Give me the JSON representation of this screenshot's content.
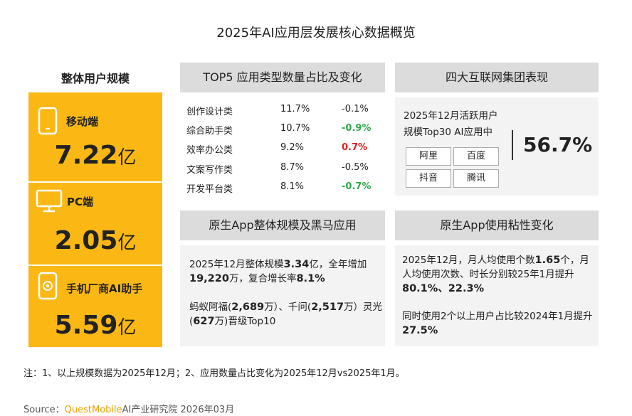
{
  "title": "2025年AI应用层发展核心数据概览",
  "user_scale": {
    "title": "整体用户规模",
    "items": [
      {
        "label": "移动端",
        "value": "7.22",
        "unit": "亿"
      },
      {
        "label": "PC端",
        "value": "2.05",
        "unit": "亿"
      },
      {
        "label": "手机厂商AI助手",
        "value": "5.59",
        "unit": "亿"
      }
    ]
  },
  "top5": {
    "title": "TOP5 应用类型数量占比及变化",
    "rows": [
      {
        "name": "创作设计类",
        "share": "11.7%",
        "change": "-0.1%",
        "change_color": "#222222"
      },
      {
        "name": "综合助手类",
        "share": "10.7%",
        "change": "-0.9%",
        "change_color": "#2ea84a"
      },
      {
        "name": "效率办公类",
        "share": "9.2%",
        "change": "0.7%",
        "change_color": "#e02020"
      },
      {
        "name": "文案写作类",
        "share": "8.7%",
        "change": "-0.5%",
        "change_color": "#222222"
      },
      {
        "name": "开发平台类",
        "share": "8.1%",
        "change": "-0.7%",
        "change_color": "#2ea84a"
      }
    ]
  },
  "groups": {
    "title": "四大互联网集团表现",
    "text": [
      "2025年12月活跃用户",
      "规模Top30 AI应用中"
    ],
    "companies": [
      "阿里",
      "百度",
      "抖音",
      "腾讯"
    ],
    "share": "56.7%"
  },
  "native_app": {
    "title": "原生App整体规模及黑马应用",
    "paragraphs": [
      [
        {
          "text": "2025年12月整体规模"
        },
        {
          "text": "3.34",
          "bold": true
        },
        {
          "text": "亿，全年增加"
        },
        {
          "text": "19,220",
          "bold": true
        },
        {
          "text": "万，复合增长率"
        },
        {
          "text": "8.1%",
          "bold": true
        }
      ],
      [
        {
          "text": "蚂蚁阿福("
        },
        {
          "text": "2,689",
          "bold": true
        },
        {
          "text": "万）、千问("
        },
        {
          "text": "2,517",
          "bold": true
        },
        {
          "text": "万）灵光("
        },
        {
          "text": "627",
          "bold": true
        },
        {
          "text": "万)晋级Top10"
        }
      ]
    ]
  },
  "stickiness": {
    "title": "原生App使用粘性变化",
    "paragraphs": [
      [
        {
          "text": "2025年12月，月人均使用个数"
        },
        {
          "text": "1.65",
          "bold": true
        },
        {
          "text": "个，月人均使用次数、时长分别较25年1月提升"
        },
        {
          "text": "80.1%、22.3%",
          "bold": true
        }
      ],
      [
        {
          "text": "同时使用2个以上用户占比较2024年1月提升"
        },
        {
          "text": "27.5%",
          "bold": true
        }
      ]
    ]
  },
  "note": "注：1、以上规模数据为2025年12月；2、应用数量占比变化为2025年12月vs2025年1月。",
  "source": {
    "label": "Source：",
    "brand": "QuestMobile",
    "text": "AI产业研究院 2026年03月"
  }
}
